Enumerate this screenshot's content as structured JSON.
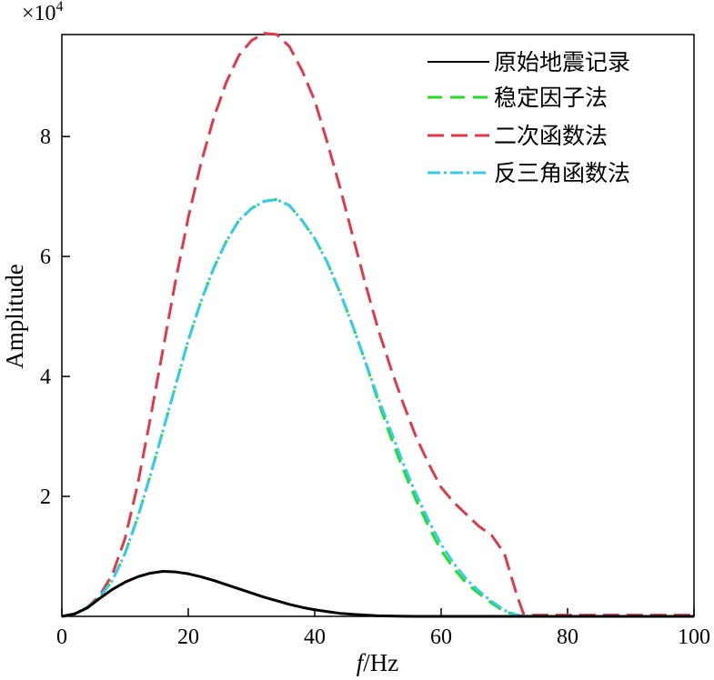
{
  "chart_data": {
    "type": "line",
    "title": "",
    "xlabel_italic": "f",
    "xlabel_unit": "/Hz",
    "ylabel": "Amplitude",
    "y_multiplier_base": "×10",
    "y_multiplier_exp": "4",
    "xlim": [
      0,
      100
    ],
    "ylim": [
      0,
      9.7
    ],
    "x_ticks": [
      0,
      20,
      40,
      60,
      80,
      100
    ],
    "y_ticks": [
      2,
      4,
      6,
      8
    ],
    "grid": false,
    "legend_position": "top-right",
    "series": [
      {
        "name": "原始地震记录",
        "color": "#000000",
        "dash": "solid",
        "x": [
          0,
          2,
          4,
          6,
          8,
          10,
          12,
          14,
          16,
          18,
          20,
          22,
          24,
          26,
          28,
          30,
          32,
          34,
          36,
          38,
          40,
          42,
          44,
          46,
          48,
          50,
          52,
          54,
          56,
          58,
          60,
          65,
          70,
          75,
          80,
          90,
          100
        ],
        "y": [
          0,
          0.04,
          0.14,
          0.3,
          0.45,
          0.57,
          0.66,
          0.72,
          0.75,
          0.74,
          0.71,
          0.66,
          0.6,
          0.53,
          0.46,
          0.39,
          0.32,
          0.26,
          0.2,
          0.15,
          0.11,
          0.08,
          0.05,
          0.035,
          0.02,
          0.01,
          0.005,
          0.002,
          0.0,
          0.0,
          0.0,
          0.0,
          0.0,
          0.0,
          0.0,
          0.0,
          0.0
        ]
      },
      {
        "name": "稳定因子法",
        "color": "#22dd22",
        "dash": "dashed",
        "x": [
          0,
          2,
          4,
          6,
          8,
          10,
          12,
          14,
          16,
          18,
          20,
          22,
          24,
          26,
          28,
          30,
          32,
          34,
          36,
          38,
          40,
          42,
          44,
          46,
          48,
          50,
          52,
          54,
          56,
          58,
          60,
          62,
          64,
          66,
          68,
          70,
          72,
          74,
          80,
          90,
          100
        ],
        "y": [
          0,
          0.04,
          0.15,
          0.32,
          0.6,
          1.05,
          1.65,
          2.35,
          3.1,
          3.85,
          4.6,
          5.25,
          5.8,
          6.25,
          6.6,
          6.8,
          6.92,
          6.95,
          6.85,
          6.6,
          6.3,
          5.9,
          5.4,
          4.85,
          4.25,
          3.6,
          3.0,
          2.45,
          1.95,
          1.5,
          1.1,
          0.8,
          0.55,
          0.38,
          0.22,
          0.08,
          0.02,
          0.0,
          0.0,
          0.0,
          0.0
        ]
      },
      {
        "name": "二次函数法",
        "color": "#e03a48",
        "dash": "long-dash",
        "x": [
          0,
          2,
          4,
          6,
          8,
          10,
          12,
          14,
          16,
          18,
          20,
          22,
          24,
          26,
          28,
          30,
          32,
          34,
          36,
          38,
          40,
          42,
          44,
          46,
          48,
          50,
          52,
          54,
          56,
          58,
          60,
          62,
          64,
          66,
          68,
          70,
          72,
          73,
          74,
          80,
          90,
          100
        ],
        "y": [
          0,
          0.04,
          0.15,
          0.35,
          0.7,
          1.3,
          2.2,
          3.3,
          4.45,
          5.6,
          6.65,
          7.55,
          8.3,
          8.9,
          9.35,
          9.6,
          9.72,
          9.7,
          9.5,
          9.1,
          8.6,
          7.9,
          7.15,
          6.35,
          5.55,
          4.8,
          4.15,
          3.55,
          3.0,
          2.55,
          2.15,
          1.9,
          1.7,
          1.5,
          1.35,
          1.05,
          0.35,
          0.05,
          0.02,
          0.02,
          0.02,
          0.02
        ]
      },
      {
        "name": "反三角函数法",
        "color": "#33ccee",
        "dash": "dash-dot",
        "x": [
          0,
          2,
          4,
          6,
          8,
          10,
          12,
          14,
          16,
          18,
          20,
          22,
          24,
          26,
          28,
          30,
          32,
          34,
          36,
          38,
          40,
          42,
          44,
          46,
          48,
          50,
          52,
          54,
          56,
          58,
          60,
          62,
          64,
          66,
          68,
          70,
          72,
          74,
          80,
          90,
          100
        ],
        "y": [
          0,
          0.04,
          0.15,
          0.32,
          0.6,
          1.05,
          1.65,
          2.35,
          3.1,
          3.85,
          4.6,
          5.25,
          5.8,
          6.25,
          6.6,
          6.8,
          6.92,
          6.95,
          6.85,
          6.6,
          6.3,
          5.9,
          5.4,
          4.85,
          4.25,
          3.65,
          3.1,
          2.55,
          2.05,
          1.6,
          1.2,
          0.88,
          0.62,
          0.42,
          0.25,
          0.1,
          0.02,
          0.0,
          0.0,
          0.0,
          0.0
        ]
      }
    ]
  }
}
